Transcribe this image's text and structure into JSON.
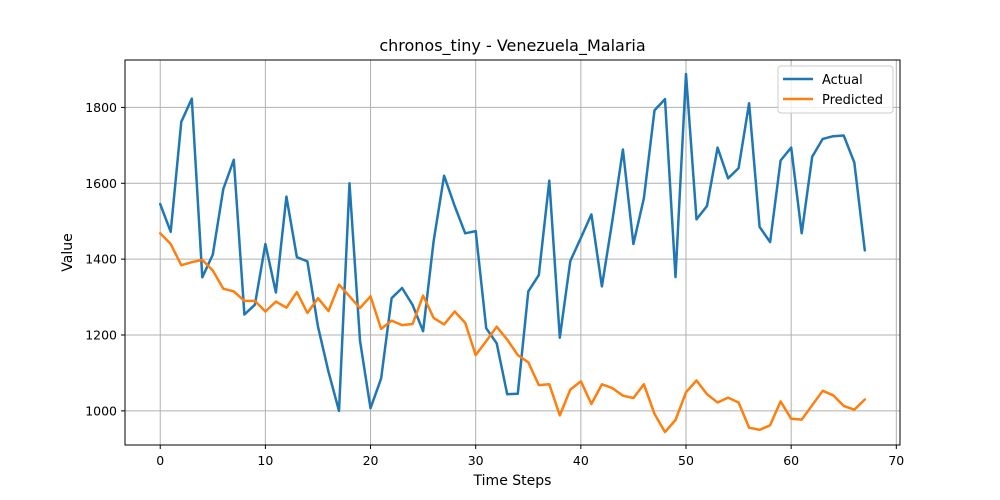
{
  "chart_data": {
    "type": "line",
    "title": "chronos_tiny - Venezuela_Malaria",
    "xlabel": "Time Steps",
    "ylabel": "Value",
    "xlim": [
      -3.35,
      70.35
    ],
    "ylim": [
      910,
      1925
    ],
    "xticks": [
      0,
      10,
      20,
      30,
      40,
      50,
      60,
      70
    ],
    "yticks": [
      1000,
      1200,
      1400,
      1600,
      1800
    ],
    "grid": true,
    "legend_position": "top-right",
    "series": [
      {
        "name": "Actual",
        "color": "#1f77b4",
        "values": [
          1545,
          1472,
          1762,
          1823,
          1352,
          1412,
          1585,
          1662,
          1254,
          1280,
          1440,
          1312,
          1565,
          1405,
          1394,
          1222,
          1103,
          1000,
          1600,
          1185,
          1007,
          1085,
          1297,
          1324,
          1279,
          1210,
          1447,
          1620,
          1540,
          1468,
          1474,
          1218,
          1178,
          1044,
          1045,
          1315,
          1358,
          1607,
          1193,
          1395,
          1456,
          1518,
          1328,
          1502,
          1689,
          1440,
          1561,
          1792,
          1822,
          1353,
          1888,
          1505,
          1540,
          1694,
          1613,
          1640,
          1811,
          1485,
          1445,
          1660,
          1694,
          1468,
          1670,
          1717,
          1724,
          1726,
          1655,
          1423
        ]
      },
      {
        "name": "Predicted",
        "color": "#ff7f0e",
        "values": [
          1468,
          1440,
          1384,
          1392,
          1398,
          1370,
          1322,
          1315,
          1290,
          1290,
          1262,
          1288,
          1272,
          1313,
          1258,
          1297,
          1263,
          1333,
          1302,
          1271,
          1302,
          1216,
          1238,
          1226,
          1229,
          1304,
          1245,
          1228,
          1262,
          1232,
          1147,
          1184,
          1222,
          1188,
          1147,
          1128,
          1068,
          1070,
          988,
          1056,
          1078,
          1018,
          1070,
          1060,
          1040,
          1034,
          1070,
          992,
          944,
          976,
          1049,
          1080,
          1044,
          1022,
          1035,
          1022,
          956,
          950,
          962,
          1025,
          979,
          977,
          1015,
          1053,
          1041,
          1013,
          1003,
          1030
        ]
      }
    ]
  }
}
